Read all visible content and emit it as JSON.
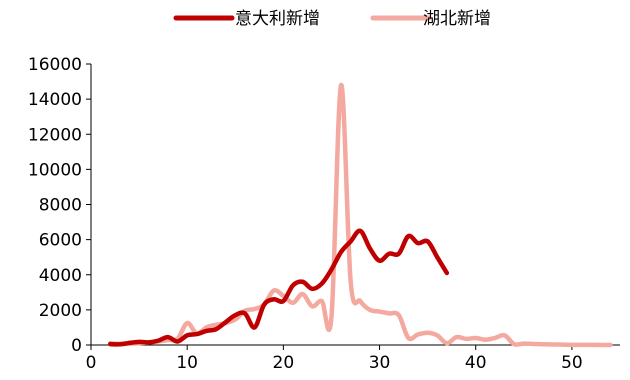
{
  "chart_data": {
    "type": "line",
    "xlim": [
      0,
      55
    ],
    "ylim": [
      0,
      16000
    ],
    "x_ticks": [
      0,
      10,
      20,
      30,
      40,
      50
    ],
    "y_ticks": [
      0,
      2000,
      4000,
      6000,
      8000,
      10000,
      12000,
      14000,
      16000
    ],
    "grid": false,
    "legend_position": "top-center",
    "series": [
      {
        "name": "意大利新增",
        "color": "#c00000",
        "x": [
          2,
          3,
          4,
          5,
          6,
          7,
          8,
          9,
          10,
          11,
          12,
          13,
          14,
          15,
          16,
          17,
          18,
          19,
          20,
          21,
          22,
          23,
          24,
          25,
          26,
          27,
          28,
          29,
          30,
          31,
          32,
          33,
          34,
          35,
          36,
          37
        ],
        "y": [
          50,
          40,
          120,
          180,
          150,
          250,
          450,
          200,
          550,
          620,
          800,
          900,
          1300,
          1700,
          1800,
          1000,
          2300,
          2600,
          2500,
          3400,
          3600,
          3200,
          3500,
          4300,
          5300,
          5900,
          6500,
          5500,
          4800,
          5200,
          5200,
          6200,
          5800,
          5900,
          5000,
          4100
        ]
      },
      {
        "name": "湖北新增",
        "color": "#f4a9a0",
        "x": [
          2,
          3,
          4,
          5,
          6,
          7,
          8,
          9,
          10,
          11,
          12,
          13,
          14,
          15,
          16,
          17,
          18,
          19,
          20,
          21,
          22,
          23,
          24,
          25,
          26,
          27,
          28,
          29,
          30,
          31,
          32,
          33,
          34,
          35,
          36,
          37,
          38,
          39,
          40,
          41,
          42,
          43,
          44,
          45,
          46,
          47,
          48,
          49,
          50,
          51,
          52,
          53,
          54
        ],
        "y": [
          100,
          60,
          80,
          100,
          150,
          200,
          280,
          350,
          1250,
          650,
          1000,
          1150,
          1250,
          1450,
          1950,
          2050,
          2300,
          3100,
          2800,
          2400,
          2900,
          2200,
          2500,
          1600,
          14800,
          3600,
          2500,
          2000,
          1900,
          1800,
          1700,
          400,
          600,
          700,
          550,
          100,
          450,
          350,
          400,
          300,
          400,
          550,
          50,
          80,
          60,
          40,
          30,
          20,
          10,
          5,
          5,
          3,
          2
        ]
      }
    ]
  }
}
